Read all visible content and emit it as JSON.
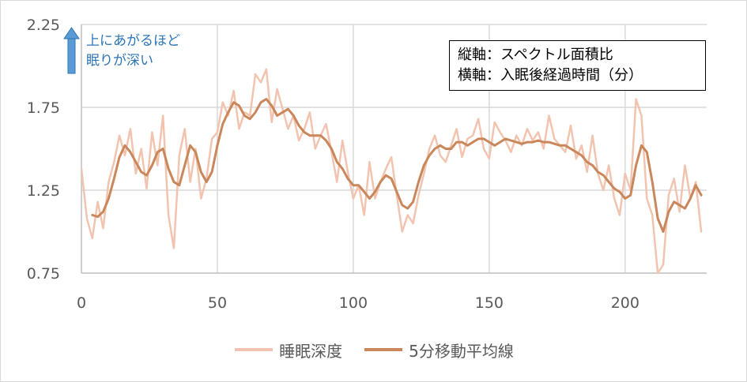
{
  "chart_data": {
    "type": "line",
    "xlim": [
      0,
      230
    ],
    "ylim": [
      0.75,
      2.25
    ],
    "x_ticks": [
      "0",
      "50",
      "100",
      "150",
      "200"
    ],
    "y_ticks": [
      "0.75",
      "1.25",
      "1.75",
      "2.25"
    ],
    "grid": true,
    "legend": "bottom",
    "series": [
      {
        "name": "睡眠深度",
        "color": "#f2c4b0",
        "x": [
          0,
          2,
          4,
          6,
          8,
          10,
          12,
          14,
          16,
          18,
          20,
          22,
          24,
          26,
          28,
          30,
          32,
          34,
          36,
          38,
          40,
          42,
          44,
          46,
          48,
          50,
          52,
          54,
          56,
          58,
          60,
          62,
          64,
          66,
          68,
          70,
          72,
          74,
          76,
          78,
          80,
          82,
          84,
          86,
          88,
          90,
          92,
          94,
          96,
          98,
          100,
          102,
          104,
          106,
          108,
          110,
          112,
          114,
          116,
          118,
          120,
          122,
          124,
          126,
          128,
          130,
          132,
          134,
          136,
          138,
          140,
          142,
          144,
          146,
          148,
          150,
          152,
          154,
          156,
          158,
          160,
          162,
          164,
          166,
          168,
          170,
          172,
          174,
          176,
          178,
          180,
          182,
          184,
          186,
          188,
          190,
          192,
          194,
          196,
          198,
          200,
          202,
          204,
          206,
          208,
          210,
          212,
          214,
          216,
          218,
          220,
          222,
          224,
          226,
          228
        ],
        "values": [
          1.38,
          1.08,
          0.96,
          1.18,
          1.02,
          1.3,
          1.42,
          1.58,
          1.46,
          1.62,
          1.35,
          1.5,
          1.26,
          1.6,
          1.4,
          1.7,
          1.1,
          0.9,
          1.46,
          1.62,
          1.3,
          1.5,
          1.2,
          1.32,
          1.56,
          1.6,
          1.78,
          1.7,
          1.85,
          1.62,
          1.72,
          1.7,
          1.95,
          1.9,
          1.98,
          1.66,
          1.86,
          1.74,
          1.62,
          1.7,
          1.55,
          1.62,
          1.72,
          1.5,
          1.58,
          1.65,
          1.48,
          1.3,
          1.55,
          1.36,
          1.2,
          1.28,
          1.1,
          1.42,
          1.2,
          1.3,
          1.38,
          1.45,
          1.22,
          1.0,
          1.1,
          1.05,
          1.22,
          1.35,
          1.5,
          1.58,
          1.46,
          1.42,
          1.52,
          1.62,
          1.45,
          1.56,
          1.58,
          1.68,
          1.5,
          1.44,
          1.66,
          1.6,
          1.55,
          1.48,
          1.58,
          1.52,
          1.62,
          1.55,
          1.6,
          1.5,
          1.7,
          1.56,
          1.52,
          1.48,
          1.64,
          1.44,
          1.52,
          1.36,
          1.58,
          1.35,
          1.25,
          1.4,
          1.2,
          1.1,
          1.35,
          1.25,
          1.8,
          1.7,
          1.2,
          1.1,
          0.75,
          0.8,
          1.22,
          1.32,
          1.12,
          1.4,
          1.2,
          1.3,
          1.0
        ],
        "line_width": 2.5
      },
      {
        "name": "5分移動平均線",
        "color": "#c9875b",
        "x": [
          4,
          6,
          8,
          10,
          12,
          14,
          16,
          18,
          20,
          22,
          24,
          26,
          28,
          30,
          32,
          34,
          36,
          38,
          40,
          42,
          44,
          46,
          48,
          50,
          52,
          54,
          56,
          58,
          60,
          62,
          64,
          66,
          68,
          70,
          72,
          74,
          76,
          78,
          80,
          82,
          84,
          86,
          88,
          90,
          92,
          94,
          96,
          98,
          100,
          102,
          104,
          106,
          108,
          110,
          112,
          114,
          116,
          118,
          120,
          122,
          124,
          126,
          128,
          130,
          132,
          134,
          136,
          138,
          140,
          142,
          144,
          146,
          148,
          150,
          152,
          154,
          156,
          158,
          160,
          162,
          164,
          166,
          168,
          170,
          172,
          174,
          176,
          178,
          180,
          182,
          184,
          186,
          188,
          190,
          192,
          194,
          196,
          198,
          200,
          202,
          204,
          206,
          208,
          210,
          212,
          214,
          216,
          218,
          220,
          222,
          224,
          226,
          228
        ],
        "values": [
          1.1,
          1.09,
          1.12,
          1.2,
          1.32,
          1.45,
          1.52,
          1.48,
          1.42,
          1.36,
          1.34,
          1.4,
          1.48,
          1.5,
          1.38,
          1.3,
          1.28,
          1.4,
          1.52,
          1.48,
          1.36,
          1.3,
          1.36,
          1.52,
          1.65,
          1.72,
          1.78,
          1.76,
          1.7,
          1.68,
          1.72,
          1.78,
          1.8,
          1.76,
          1.7,
          1.72,
          1.74,
          1.7,
          1.64,
          1.6,
          1.58,
          1.58,
          1.58,
          1.55,
          1.5,
          1.42,
          1.38,
          1.32,
          1.28,
          1.28,
          1.24,
          1.2,
          1.24,
          1.3,
          1.34,
          1.32,
          1.24,
          1.16,
          1.14,
          1.18,
          1.3,
          1.4,
          1.46,
          1.5,
          1.52,
          1.5,
          1.5,
          1.54,
          1.54,
          1.52,
          1.54,
          1.56,
          1.56,
          1.54,
          1.52,
          1.54,
          1.56,
          1.55,
          1.54,
          1.53,
          1.54,
          1.54,
          1.55,
          1.54,
          1.54,
          1.53,
          1.52,
          1.52,
          1.5,
          1.48,
          1.46,
          1.42,
          1.4,
          1.36,
          1.34,
          1.3,
          1.26,
          1.24,
          1.2,
          1.22,
          1.4,
          1.52,
          1.48,
          1.3,
          1.08,
          1.0,
          1.12,
          1.18,
          1.16,
          1.14,
          1.2,
          1.28,
          1.22
        ]
      }
    ]
  },
  "note": {
    "line1": "縦軸：スペクトル面積比",
    "line2": "横軸：入眠後経過時間（分）"
  },
  "annotation": {
    "line1": "上にあがるほど",
    "line2": "眠りが深い",
    "color": "#2e75b6"
  }
}
